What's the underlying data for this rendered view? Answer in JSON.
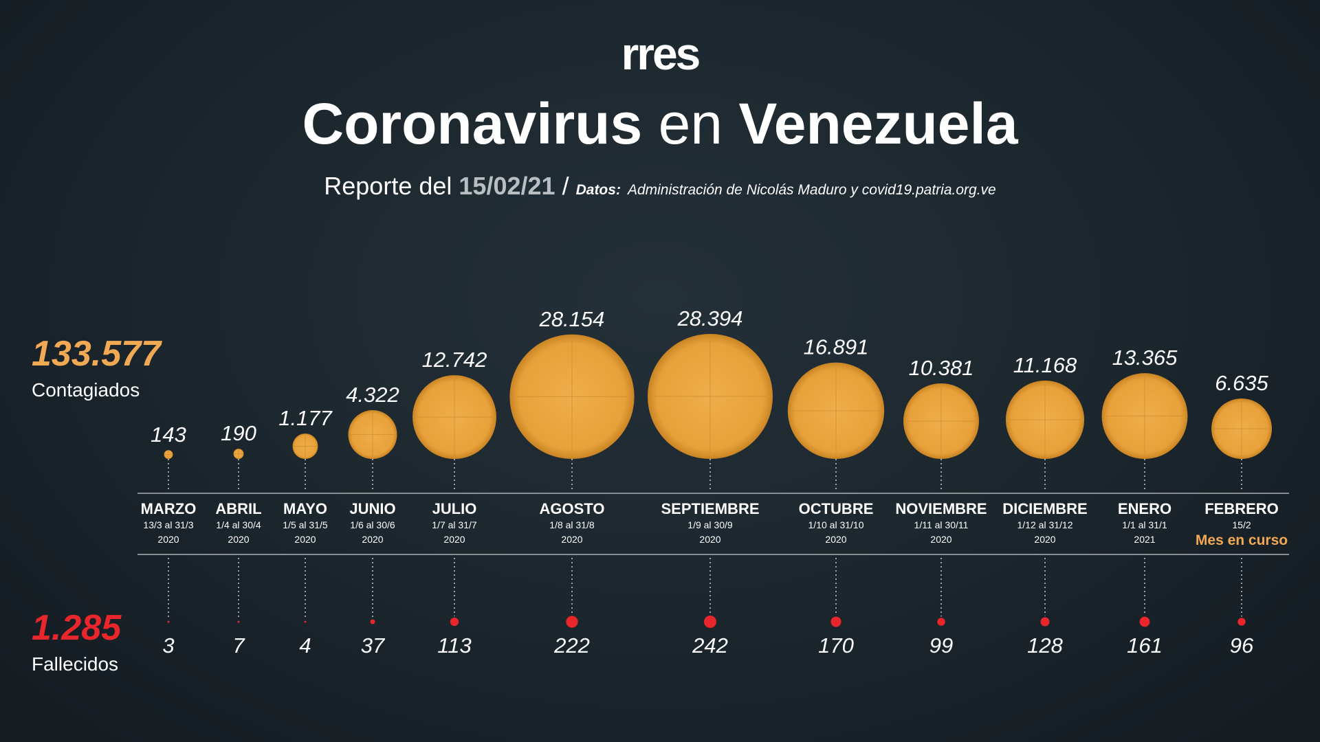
{
  "brand": "rres",
  "title": {
    "part1": "Coronavirus",
    "part2": "en",
    "part3": "Venezuela"
  },
  "subtitle": {
    "prefix": "Reporte del",
    "date": "15/02/21",
    "separator": "/",
    "source_label": "Datos:",
    "source": "Administración de Nicolás Maduro y covid19.patria.org.ve"
  },
  "totals": {
    "cases_value": "133.577",
    "cases_label": "Contagiados",
    "deaths_value": "1.285",
    "deaths_label": "Fallecidos"
  },
  "colors": {
    "cases": "#e8a13a",
    "deaths": "#e8262c",
    "cases_text": "#f2a954",
    "text": "#ffffff",
    "muted": "#b9bec2"
  },
  "chart_data": {
    "type": "bubble",
    "categories": [
      "MARZO",
      "ABRIL",
      "MAYO",
      "JUNIO",
      "JULIO",
      "AGOSTO",
      "SEPTIEMBRE",
      "OCTUBRE",
      "NOVIEMBRE",
      "DICIEMBRE",
      "ENERO",
      "FEBRERO"
    ],
    "periods": [
      "13/3 al 31/3",
      "1/4 al 30/4",
      "1/5 al 31/5",
      "1/6 al 30/6",
      "1/7 al 31/7",
      "1/8 al 31/8",
      "1/9 al 30/9",
      "1/10 al  31/10",
      "1/11 al 30/11",
      "1/12 al 31/12",
      "1/1 al  31/1",
      "15/2"
    ],
    "years": [
      "2020",
      "2020",
      "2020",
      "2020",
      "2020",
      "2020",
      "2020",
      "2020",
      "2020",
      "2020",
      "2021",
      ""
    ],
    "notes": [
      "",
      "",
      "",
      "",
      "",
      "",
      "",
      "",
      "",
      "",
      "",
      "Mes en curso"
    ],
    "series": [
      {
        "name": "Contagiados",
        "values": [
          143,
          190,
          1177,
          4322,
          12742,
          28154,
          28394,
          16891,
          10381,
          11168,
          13365,
          6635
        ],
        "labels": [
          "143",
          "190",
          "1.177",
          "4.322",
          "12.742",
          "28.154",
          "28.394",
          "16.891",
          "10.381",
          "11.168",
          "13.365",
          "6.635"
        ]
      },
      {
        "name": "Fallecidos",
        "values": [
          3,
          7,
          4,
          37,
          113,
          222,
          242,
          170,
          99,
          128,
          161,
          96
        ],
        "labels": [
          "3",
          "7",
          "4",
          "37",
          "113",
          "222",
          "242",
          "170",
          "99",
          "128",
          "161",
          "96"
        ]
      }
    ]
  }
}
